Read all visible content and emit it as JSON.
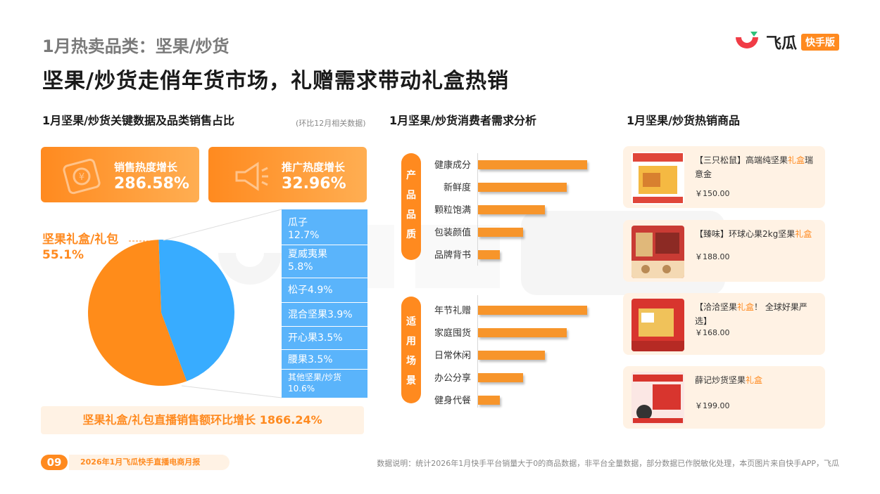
{
  "header": {
    "sup_title": "1月热卖品类：坚果/炒货",
    "main_title": "坚果/炒货走俏年货市场，礼赠需求带动礼盒热销"
  },
  "logo": {
    "name": "飞瓜",
    "badge": "快手版"
  },
  "left": {
    "title": "1月坚果/炒货关键数据及品类销售占比",
    "note": "(环比12月相关数据)",
    "kpis": [
      {
        "label": "销售热度增长",
        "value": "286.58%",
        "icon": "money-icon"
      },
      {
        "label": "推广热度增长",
        "value": "32.96%",
        "icon": "megaphone-icon"
      }
    ],
    "pie_callout": {
      "name": "坚果礼盒/礼包",
      "value": "55.1%"
    },
    "legend": [
      {
        "line1": "瓜子",
        "line2": "12.7%"
      },
      {
        "line1": "夏威夷果",
        "line2": "5.8%"
      },
      {
        "line1": "松子4.9%",
        "line2": ""
      },
      {
        "line1": "混合坚果3.9%",
        "line2": ""
      },
      {
        "line1": "开心果3.5%",
        "line2": ""
      },
      {
        "line1": "腰果3.5%",
        "line2": ""
      },
      {
        "line1": "其他坚果/炒货",
        "line2": "10.6%"
      }
    ],
    "banner": "坚果礼盒/礼包直播销售额环比增长  1866.24%"
  },
  "chart_data": {
    "type": "pie",
    "categories": [
      "坚果礼盒/礼包",
      "瓜子",
      "夏威夷果",
      "松子",
      "混合坚果",
      "开心果",
      "腰果",
      "其他坚果/炒货"
    ],
    "values": [
      55.1,
      12.7,
      5.8,
      4.9,
      3.9,
      3.5,
      3.5,
      10.6
    ],
    "colors": {
      "main": "#ff8c1a",
      "others": "#38acff"
    }
  },
  "middle": {
    "title": "1月坚果/炒货消费者需求分析",
    "groups": [
      {
        "pill": [
          "产",
          "品",
          "品",
          "质"
        ],
        "items": [
          {
            "label": "健康成分",
            "relative": 1.0
          },
          {
            "label": "新鲜度",
            "relative": 0.81
          },
          {
            "label": "颗粒饱满",
            "relative": 0.61
          },
          {
            "label": "包装颜值",
            "relative": 0.41
          },
          {
            "label": "品牌背书",
            "relative": 0.2
          }
        ]
      },
      {
        "pill": [
          "适",
          "用",
          "场",
          "景"
        ],
        "items": [
          {
            "label": "年节礼赠",
            "relative": 1.0
          },
          {
            "label": "家庭囤货",
            "relative": 0.81
          },
          {
            "label": "日常休闲",
            "relative": 0.61
          },
          {
            "label": "办公分享",
            "relative": 0.41
          },
          {
            "label": "健身代餐",
            "relative": 0.2
          }
        ]
      }
    ]
  },
  "right": {
    "title": "1月坚果/炒货热销商品",
    "products": [
      {
        "pre": "【三只松鼠】高端纯坚果",
        "hl": "礼盒",
        "post": "瑞意金",
        "price": "￥150.00"
      },
      {
        "pre": "【臻味】环球心果2kg坚果",
        "hl": "礼盒",
        "post": "",
        "price": "￥188.00"
      },
      {
        "pre": "【洽洽坚果",
        "hl": "礼盒",
        "post": "！ 全球好果严选】",
        "price": "￥168.00"
      },
      {
        "pre": "薛记炒货坚果",
        "hl": "礼盒",
        "post": "",
        "price": "￥199.00"
      }
    ]
  },
  "footer": {
    "page": "09",
    "report": "2026年1月飞瓜快手直播电商月报",
    "note": "数据说明：统计2026年1月快手平台销量大于0的商品数据，非平台全量数据，部分数据已作脱敏化处理，本页图片来自快手APP，飞瓜"
  },
  "colors": {
    "accent": "#ff8a1f",
    "blue": "#38acff",
    "bar": "#f7952b",
    "card_bg": "#fff2e4"
  }
}
